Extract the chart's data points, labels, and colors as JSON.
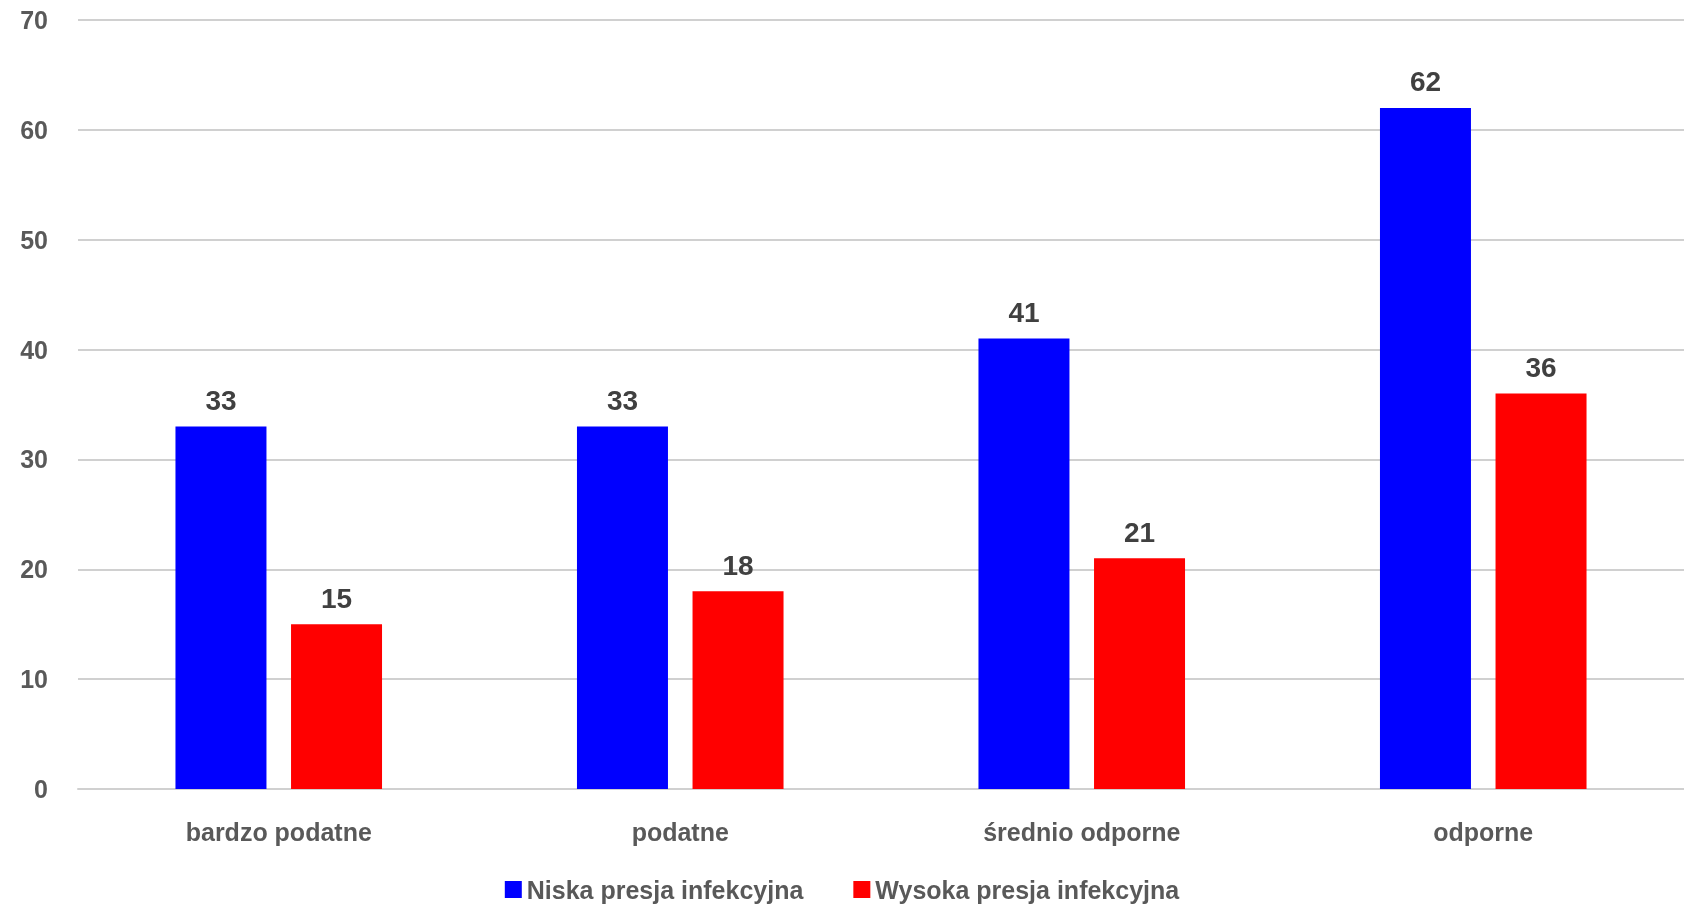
{
  "chart_data": {
    "type": "bar",
    "categories": [
      "bardzo podatne",
      "podatne",
      "średnio odporne",
      "odporne"
    ],
    "series": [
      {
        "name": "Niska presja infekcyjna",
        "color": "#0000ff",
        "values": [
          33,
          33,
          41,
          62
        ]
      },
      {
        "name": "Wysoka presja infekcyjna",
        "color": "#ff0000",
        "values": [
          15,
          18,
          21,
          36
        ]
      }
    ],
    "ylim": [
      0,
      70
    ],
    "yticks": [
      0,
      10,
      20,
      30,
      40,
      50,
      60,
      70
    ],
    "grid": "y",
    "legend": "bottom",
    "data_labels": true
  }
}
